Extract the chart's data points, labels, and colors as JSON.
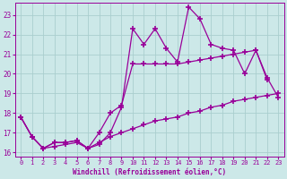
{
  "xlabel": "Windchill (Refroidissement éolien,°C)",
  "x_values": [
    0,
    1,
    2,
    3,
    4,
    5,
    6,
    7,
    8,
    9,
    10,
    11,
    12,
    13,
    14,
    15,
    16,
    17,
    18,
    19,
    20,
    21,
    22,
    23
  ],
  "line1": [
    17.8,
    16.8,
    16.2,
    16.5,
    16.5,
    16.6,
    16.2,
    16.4,
    17.0,
    18.3,
    22.3,
    21.5,
    22.3,
    21.3,
    20.6,
    23.4,
    22.8,
    21.5,
    21.3,
    21.2,
    20.0,
    21.2,
    19.8,
    18.8
  ],
  "line2": [
    17.8,
    16.8,
    16.2,
    16.5,
    16.5,
    16.6,
    16.2,
    17.0,
    18.0,
    18.4,
    20.5,
    20.5,
    20.5,
    20.5,
    20.5,
    20.6,
    20.7,
    20.8,
    20.9,
    21.0,
    21.1,
    21.2,
    19.7,
    null
  ],
  "line3": [
    17.8,
    16.8,
    16.2,
    16.3,
    16.4,
    16.5,
    16.2,
    16.5,
    16.8,
    17.0,
    17.2,
    17.4,
    17.6,
    17.7,
    17.8,
    18.0,
    18.1,
    18.3,
    18.4,
    18.6,
    18.7,
    18.8,
    18.9,
    19.0
  ],
  "bg_color": "#cce8e8",
  "grid_color": "#aacece",
  "line_color": "#990099",
  "line_width": 0.9,
  "marker": "+",
  "marker_size": 4,
  "xlim": [
    -0.5,
    23.5
  ],
  "ylim": [
    15.8,
    23.6
  ],
  "yticks": [
    16,
    17,
    18,
    19,
    20,
    21,
    22,
    23
  ],
  "xticks": [
    0,
    1,
    2,
    3,
    4,
    5,
    6,
    7,
    8,
    9,
    10,
    11,
    12,
    13,
    14,
    15,
    16,
    17,
    18,
    19,
    20,
    21,
    22,
    23
  ]
}
